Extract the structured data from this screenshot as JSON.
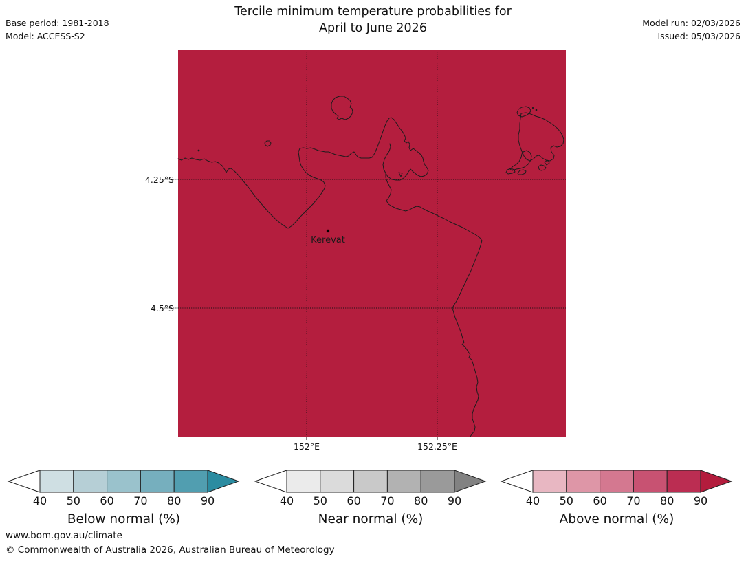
{
  "title": {
    "line1": "Tercile minimum temperature probabilities for",
    "line2": "April to June 2026"
  },
  "meta_left": {
    "base_period": "Base period: 1981-2018",
    "model": "Model: ACCESS-S2"
  },
  "meta_right": {
    "model_run": "Model run: 02/03/2026",
    "issued": "Issued: 05/03/2026"
  },
  "map": {
    "lat_label_1": "4.25°S",
    "lat_label_2": "4.5°S",
    "lon_label_1": "152°E",
    "lon_label_2": "152.25°E",
    "place_label": "Kerevat",
    "fill_color": "#b41e3e",
    "coast_color": "#1c1c1c",
    "grid_color": "#111111"
  },
  "legend": {
    "ticks": [
      "40",
      "50",
      "60",
      "70",
      "80",
      "90"
    ],
    "left_arrow_color": "#ffffff",
    "bars": [
      {
        "label": "Below normal (%)",
        "segment_colors": [
          "#cfdfe3",
          "#b6cfd6",
          "#9ac2cc",
          "#76afbe",
          "#519eb0"
        ],
        "arrow_color": "#2b8ca1"
      },
      {
        "label": "Near normal (%)",
        "segment_colors": [
          "#ebebeb",
          "#dbdbdb",
          "#c9c9c9",
          "#b2b2b2",
          "#9a9a9a"
        ],
        "arrow_color": "#828282"
      },
      {
        "label": "Above normal (%)",
        "segment_colors": [
          "#e8b7c2",
          "#de96a7",
          "#d47890",
          "#c85272",
          "#bb2d52"
        ],
        "arrow_color": "#b31c3d"
      }
    ]
  },
  "footer": {
    "url": "www.bom.gov.au/climate",
    "copyright": "© Commonwealth of Australia 2026, Australian Bureau of Meteorology"
  }
}
